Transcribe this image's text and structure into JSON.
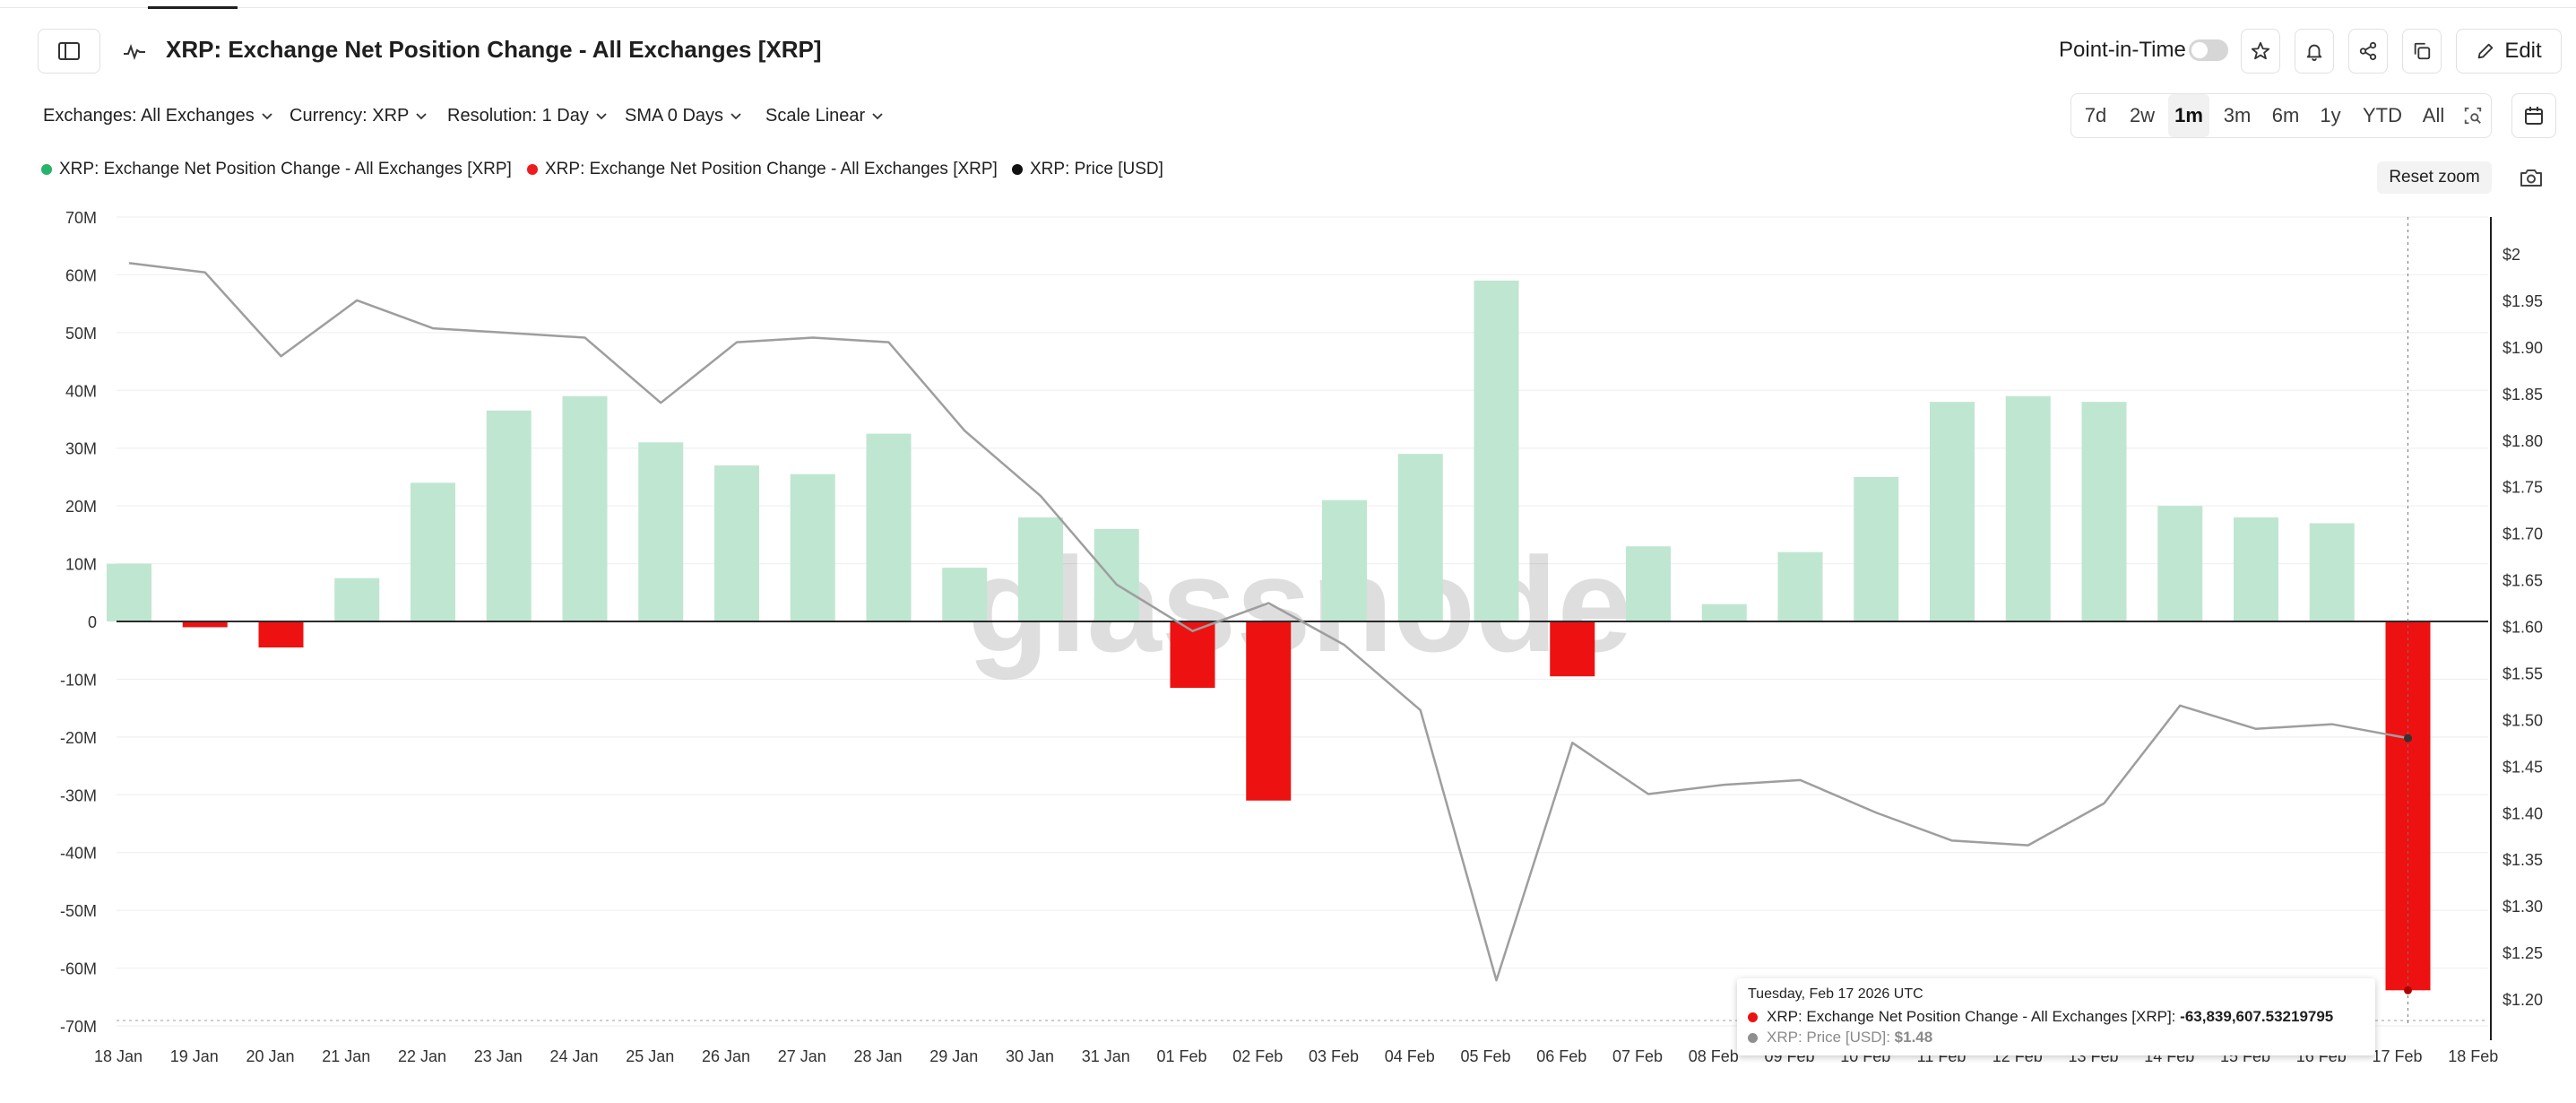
{
  "header": {
    "title": "XRP: Exchange Net Position Change - All Exchanges [XRP]",
    "point_in_time_label": "Point-in-Time",
    "edit_label": "Edit"
  },
  "filters": [
    {
      "label": "Exchanges: All Exchanges"
    },
    {
      "label": "Currency: XRP"
    },
    {
      "label": "Resolution: 1 Day"
    },
    {
      "label": "SMA 0 Days"
    },
    {
      "label": "Scale Linear"
    }
  ],
  "ranges": [
    {
      "label": "7d"
    },
    {
      "label": "2w"
    },
    {
      "label": "1m",
      "active": true
    },
    {
      "label": "3m"
    },
    {
      "label": "6m"
    },
    {
      "label": "1y"
    },
    {
      "label": "YTD"
    },
    {
      "label": "All"
    }
  ],
  "legend": [
    {
      "label": "XRP: Exchange Net Position Change - All Exchanges [XRP]",
      "color": "#27b36a"
    },
    {
      "label": "XRP: Exchange Net Position Change - All Exchanges [XRP]",
      "color": "#ee1c1c"
    },
    {
      "label": "XRP: Price [USD]",
      "color": "#111111"
    }
  ],
  "reset_zoom_label": "Reset zoom",
  "watermark": "glassnode",
  "tooltip": {
    "date": "Tuesday, Feb 17 2026 UTC",
    "series1_label": "XRP: Exchange Net Position Change - All Exchanges [XRP]:",
    "series1_value": "-63,839,607.53219795",
    "series2_label": "XRP: Price [USD]:",
    "series2_value": "$1.48"
  },
  "colors": {
    "positive_bar": "#bfe6d1",
    "negative_bar": "#ee1111",
    "price_line": "#9e9e9e",
    "positive_legend": "#27b36a",
    "negative_legend": "#ee1c1c"
  },
  "chart_data": {
    "type": "bar",
    "categories": [
      "18 Jan",
      "19 Jan",
      "20 Jan",
      "21 Jan",
      "22 Jan",
      "23 Jan",
      "24 Jan",
      "25 Jan",
      "26 Jan",
      "27 Jan",
      "28 Jan",
      "29 Jan",
      "30 Jan",
      "31 Jan",
      "01 Feb",
      "02 Feb",
      "03 Feb",
      "04 Feb",
      "05 Feb",
      "06 Feb",
      "07 Feb",
      "08 Feb",
      "09 Feb",
      "10 Feb",
      "11 Feb",
      "12 Feb",
      "13 Feb",
      "14 Feb",
      "15 Feb",
      "16 Feb",
      "17 Feb",
      "18 Feb"
    ],
    "series": [
      {
        "axis": "left",
        "values": [
          10000000,
          -1000000,
          -4500000,
          7500000,
          24000000,
          36500000,
          39000000,
          31000000,
          27000000,
          25500000,
          32500000,
          9300000,
          18000000,
          16000000,
          -11500000,
          -31000000,
          21000000,
          29000000,
          59000000,
          -9500000,
          13000000,
          3000000,
          12000000,
          25000000,
          38000000,
          39000000,
          38000000,
          20000000,
          18000000,
          17000000,
          -63839607.53219795,
          null
        ]
      },
      {
        "name": "XRP: Price [USD]",
        "type": "line",
        "axis": "right",
        "values": [
          1.99,
          1.98,
          1.89,
          1.95,
          1.92,
          1.915,
          1.91,
          1.84,
          1.905,
          1.91,
          1.905,
          1.81,
          1.74,
          1.645,
          1.595,
          1.625,
          1.58,
          1.51,
          1.22,
          1.475,
          1.42,
          1.43,
          1.435,
          1.4,
          1.37,
          1.365,
          1.41,
          1.515,
          1.49,
          1.495,
          1.48,
          null
        ]
      }
    ],
    "yticks_left": [
      "70M",
      "60M",
      "50M",
      "40M",
      "30M",
      "20M",
      "10M",
      "0",
      "-10M",
      "-20M",
      "-30M",
      "-40M",
      "-50M",
      "-60M",
      "-70M"
    ],
    "yticks_right": [
      "$2",
      "$1.95",
      "$1.90",
      "$1.85",
      "$1.80",
      "$1.75",
      "$1.70",
      "$1.65",
      "$1.60",
      "$1.55",
      "$1.50",
      "$1.45",
      "$1.40",
      "$1.35",
      "$1.30",
      "$1.25",
      "$1.20"
    ],
    "ylim_left": [
      -70000000,
      70000000
    ],
    "ylim_right": [
      1.18,
      2.03
    ],
    "grid": true,
    "legend_position": "top-left",
    "highlight_index": 30
  }
}
